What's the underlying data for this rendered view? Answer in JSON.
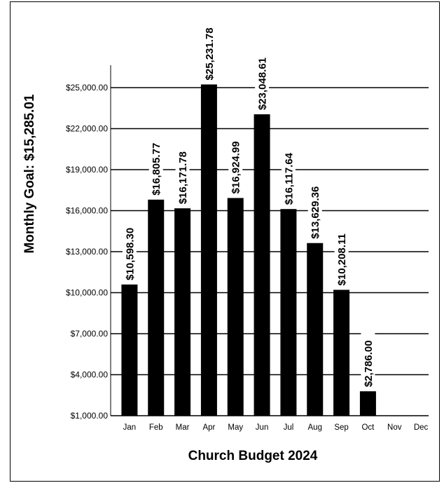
{
  "chart_data": {
    "type": "bar",
    "title": "Church Budget 2024",
    "ylabel": "Monthly Goal:  $15,285.01",
    "categories": [
      "Jan",
      "Feb",
      "Mar",
      "Apr",
      "May",
      "Jun",
      "Jul",
      "Aug",
      "Sep",
      "Oct",
      "Nov",
      "Dec"
    ],
    "values": [
      10598.3,
      16805.77,
      16171.78,
      25231.78,
      16924.99,
      23048.61,
      16117.64,
      13629.36,
      10208.11,
      2786.0,
      null,
      null
    ],
    "value_labels": [
      "$10,598.30",
      "$16,805.77",
      "$16,171.78",
      "$25,231.78",
      "$16,924.99",
      "$23,048.61",
      "$16,117.64",
      "$13,629.36",
      "$10,208.11",
      "$2,786.00",
      "",
      ""
    ],
    "yticks": [
      1000,
      4000,
      7000,
      10000,
      13000,
      16000,
      19000,
      22000,
      25000
    ],
    "ytick_labels": [
      "$1,000.00",
      "$4,000.00",
      "$7,000.00",
      "$10,000.00",
      "$13,000.00",
      "$16,000.00",
      "$19,000.00",
      "$22,000.00",
      "$25,000.00"
    ],
    "ylim": [
      1000,
      25000
    ],
    "grid": true,
    "bar_color": "#000000",
    "legend": "none"
  }
}
